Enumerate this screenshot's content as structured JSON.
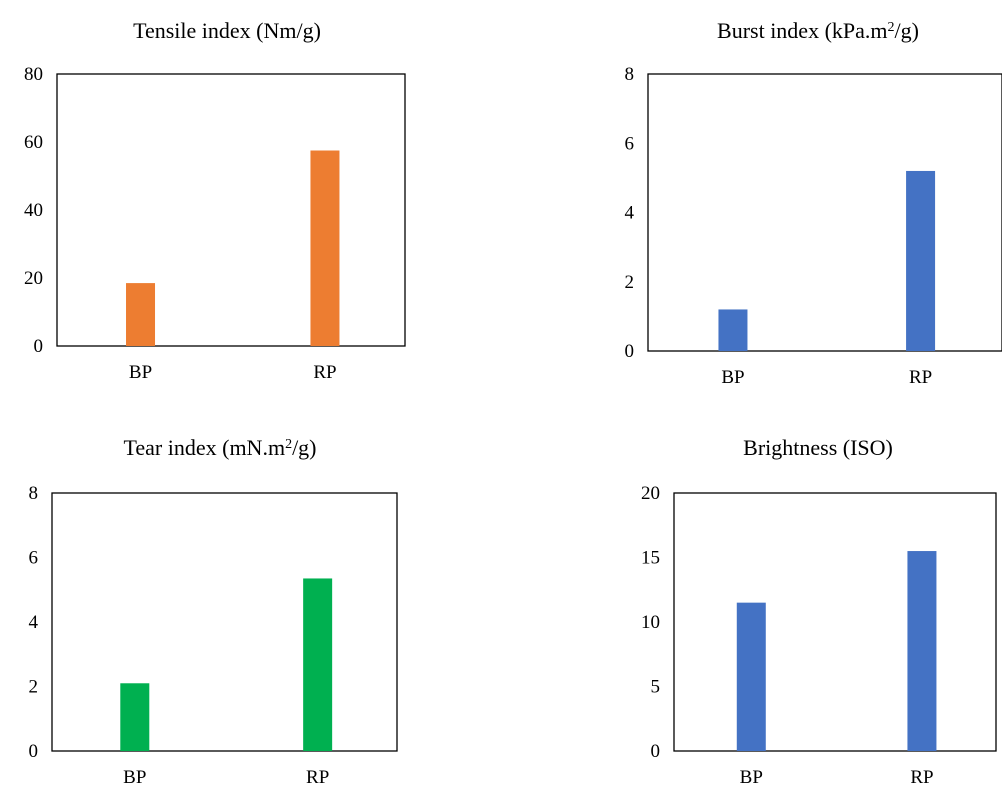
{
  "chart_data": [
    {
      "type": "bar",
      "title": "Tensile index (Nm/g)",
      "title_parts": [
        {
          "text": "Tensile index (Nm/g)",
          "sup": false
        }
      ],
      "categories": [
        "BP",
        "RP"
      ],
      "values": [
        18.5,
        57.5
      ],
      "ylim": [
        0,
        80
      ],
      "yticks": [
        0,
        20,
        40,
        60,
        80
      ],
      "color": "#ED7D31",
      "grid": false,
      "legend": "none"
    },
    {
      "type": "bar",
      "title": "Burst index (kPa.m2/g)",
      "title_parts": [
        {
          "text": "Burst index (kPa.m",
          "sup": false
        },
        {
          "text": "2",
          "sup": true
        },
        {
          "text": "/g)",
          "sup": false
        }
      ],
      "categories": [
        "BP",
        "RP"
      ],
      "values": [
        1.2,
        5.2
      ],
      "ylim": [
        0,
        8
      ],
      "yticks": [
        0,
        2,
        4,
        6,
        8
      ],
      "color": "#4472C4",
      "grid": false,
      "legend": "none"
    },
    {
      "type": "bar",
      "title": "Tear index (mN.m2/g)",
      "title_parts": [
        {
          "text": "Tear index (mN.m",
          "sup": false
        },
        {
          "text": "2",
          "sup": true
        },
        {
          "text": "/g)",
          "sup": false
        }
      ],
      "categories": [
        "BP",
        "RP"
      ],
      "values": [
        2.1,
        5.35
      ],
      "ylim": [
        0,
        8
      ],
      "yticks": [
        0,
        2,
        4,
        6,
        8
      ],
      "color": "#00B050",
      "grid": false,
      "legend": "none"
    },
    {
      "type": "bar",
      "title": "Brightness (ISO)",
      "title_parts": [
        {
          "text": "Brightness (ISO)",
          "sup": false
        }
      ],
      "categories": [
        "BP",
        "RP"
      ],
      "values": [
        11.5,
        15.5
      ],
      "ylim": [
        0,
        20
      ],
      "yticks": [
        0,
        5,
        10,
        15,
        20
      ],
      "color": "#4472C4",
      "grid": false,
      "legend": "none"
    }
  ]
}
